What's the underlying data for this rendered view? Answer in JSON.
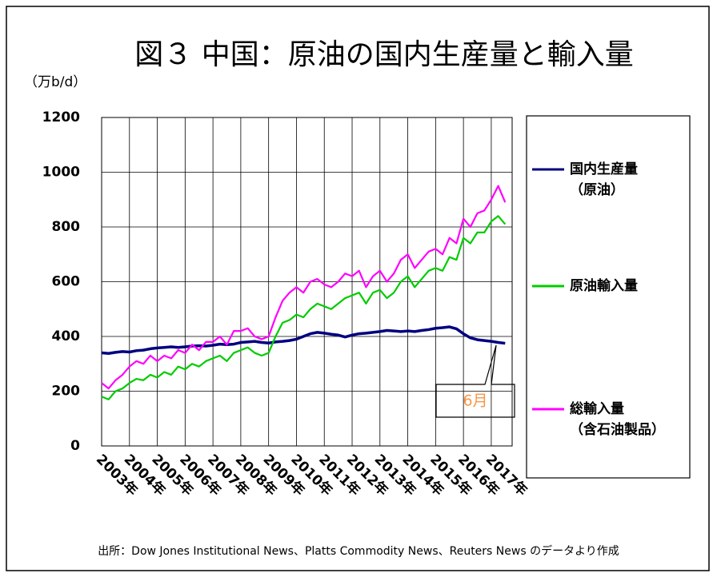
{
  "chart_data": {
    "type": "line",
    "title": "図３ 中国：原油の国内生産量と輸入量",
    "y_unit": "（万b/d）",
    "source": "出所：Dow Jones Institutional News、Platts Commodity News、Reuters News のデータより作成",
    "annotation": "6月",
    "x": [
      2003,
      2003.25,
      2003.5,
      2003.75,
      2004,
      2004.25,
      2004.5,
      2004.75,
      2005,
      2005.25,
      2005.5,
      2005.75,
      2006,
      2006.25,
      2006.5,
      2006.75,
      2007,
      2007.25,
      2007.5,
      2007.75,
      2008,
      2008.25,
      2008.5,
      2008.75,
      2009,
      2009.25,
      2009.5,
      2009.75,
      2010,
      2010.25,
      2010.5,
      2010.75,
      2011,
      2011.25,
      2011.5,
      2011.75,
      2012,
      2012.25,
      2012.5,
      2012.75,
      2013,
      2013.25,
      2013.5,
      2013.75,
      2014,
      2014.25,
      2014.5,
      2014.75,
      2015,
      2015.25,
      2015.5,
      2015.75,
      2016,
      2016.25,
      2016.5,
      2016.75,
      2017,
      2017.25,
      2017.5
    ],
    "xlim": [
      2003,
      2017.75
    ],
    "xticks": [
      {
        "value": 2003,
        "label": "2003年"
      },
      {
        "value": 2004,
        "label": "2004年"
      },
      {
        "value": 2005,
        "label": "2005年"
      },
      {
        "value": 2006,
        "label": "2006年"
      },
      {
        "value": 2007,
        "label": "2007年"
      },
      {
        "value": 2008,
        "label": "2008年"
      },
      {
        "value": 2009,
        "label": "2009年"
      },
      {
        "value": 2010,
        "label": "2010年"
      },
      {
        "value": 2011,
        "label": "2011年"
      },
      {
        "value": 2012,
        "label": "2012年"
      },
      {
        "value": 2013,
        "label": "2013年"
      },
      {
        "value": 2014,
        "label": "2014年"
      },
      {
        "value": 2015,
        "label": "2015年"
      },
      {
        "value": 2016,
        "label": "2016年"
      },
      {
        "value": 2017,
        "label": "2017年"
      }
    ],
    "ylim": [
      0,
      1200
    ],
    "yticks": [
      0,
      200,
      400,
      600,
      800,
      1000,
      1200
    ],
    "grid": true,
    "legend": "right",
    "series": [
      {
        "name": "国内生産量\n（原油）",
        "color": "#000080",
        "values": [
          340,
          338,
          342,
          345,
          343,
          348,
          350,
          355,
          358,
          360,
          362,
          360,
          362,
          365,
          366,
          365,
          368,
          372,
          370,
          372,
          378,
          380,
          382,
          378,
          376,
          380,
          382,
          385,
          390,
          400,
          410,
          415,
          412,
          408,
          405,
          398,
          405,
          410,
          412,
          415,
          418,
          422,
          420,
          418,
          420,
          418,
          422,
          425,
          430,
          432,
          435,
          428,
          410,
          395,
          388,
          385,
          382,
          378,
          375
        ]
      },
      {
        "name": "原油輸入量",
        "color": "#00cc00",
        "values": [
          180,
          170,
          200,
          210,
          230,
          245,
          240,
          260,
          250,
          270,
          260,
          290,
          280,
          300,
          290,
          310,
          320,
          330,
          310,
          340,
          350,
          360,
          340,
          330,
          340,
          400,
          450,
          460,
          480,
          470,
          500,
          520,
          510,
          500,
          520,
          540,
          550,
          560,
          520,
          560,
          570,
          540,
          560,
          600,
          620,
          580,
          610,
          640,
          650,
          640,
          690,
          680,
          760,
          740,
          780,
          780,
          820,
          840,
          810
        ]
      },
      {
        "name": "総輸入量\n（含石油製品）",
        "color": "#ff00ff",
        "values": [
          230,
          210,
          240,
          260,
          290,
          310,
          300,
          330,
          310,
          330,
          320,
          350,
          340,
          370,
          350,
          380,
          380,
          400,
          370,
          420,
          420,
          430,
          400,
          390,
          400,
          470,
          530,
          560,
          580,
          560,
          600,
          610,
          590,
          580,
          600,
          630,
          620,
          640,
          580,
          620,
          640,
          600,
          630,
          680,
          700,
          650,
          680,
          710,
          720,
          700,
          760,
          740,
          830,
          800,
          850,
          860,
          900,
          950,
          890
        ]
      }
    ]
  }
}
